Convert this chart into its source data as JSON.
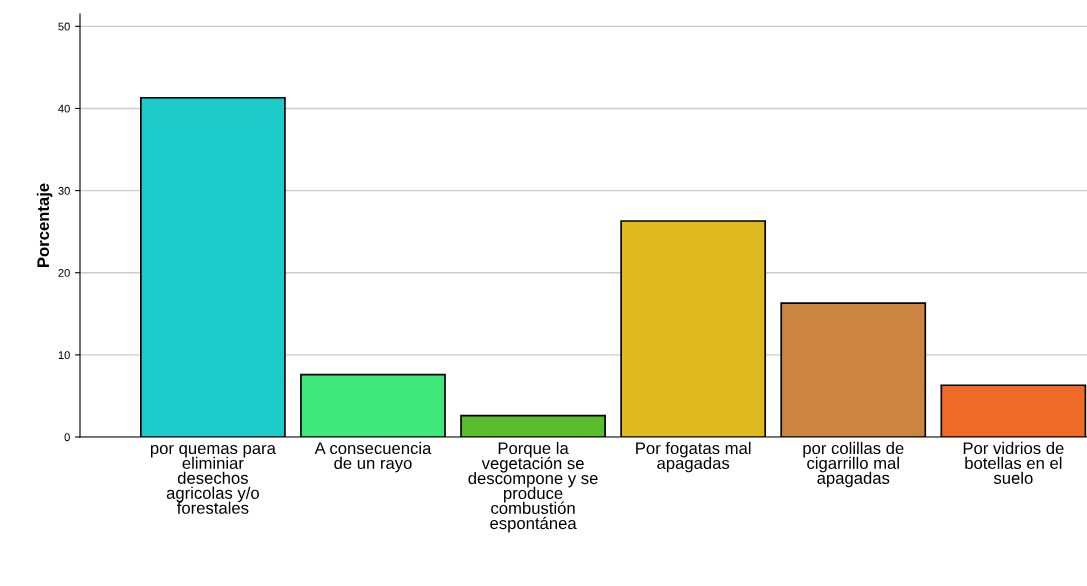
{
  "chart_data": {
    "type": "bar",
    "ylabel": "Porcentaje",
    "categories": [
      "por quemas para eliminiar desechos agricolas y/o forestales",
      "A consecuencia de un rayo",
      "Porque la vegetación se descompone y se produce combustión espontánea",
      "Por fogatas mal apagadas",
      "por colillas de cigarrillo mal apagadas",
      "Por vidrios de botellas en el suelo"
    ],
    "values": [
      41.3,
      7.6,
      2.6,
      26.3,
      16.3,
      6.3
    ],
    "colors": [
      "#1ecbcb",
      "#40e87c",
      "#5cbd2c",
      "#e0b820",
      "#cc8540",
      "#f06a28"
    ],
    "ylim": [
      0,
      51.5
    ],
    "yticks": [
      0,
      10,
      20,
      30,
      40,
      50
    ],
    "grid": "y",
    "legend": false
  }
}
